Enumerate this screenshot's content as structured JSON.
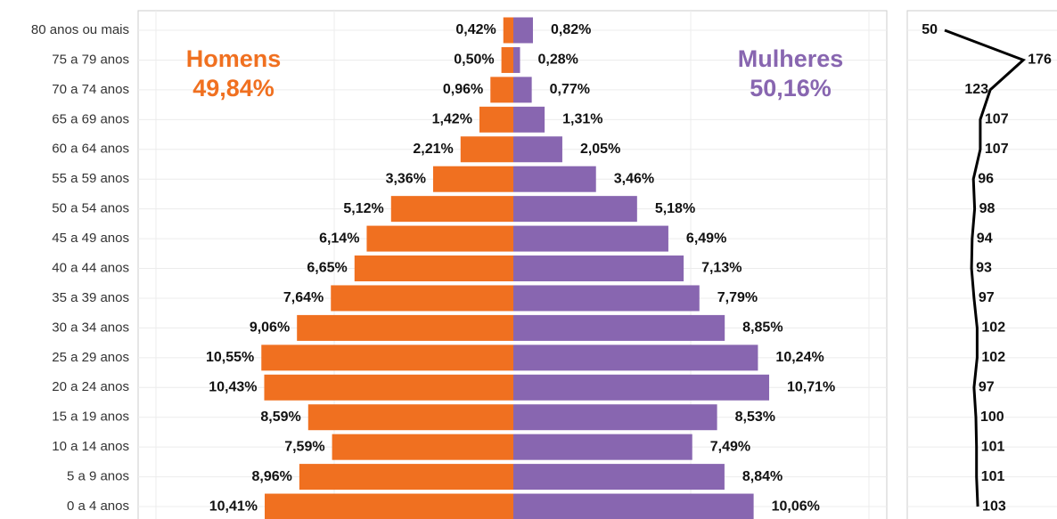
{
  "chart_data": [
    {
      "type": "pyramid",
      "categories": [
        "80 anos ou mais",
        "75 a 79 anos",
        "70 a 74 anos",
        "65 a 69 anos",
        "60 a 64 anos",
        "55 a 59 anos",
        "50 a 54 anos",
        "45 a 49 anos",
        "40 a 44 anos",
        "35 a 39 anos",
        "30 a 34 anos",
        "25 a 29 anos",
        "20 a 24 anos",
        "15 a 19 anos",
        "10 a 14 anos",
        "5 a 9 anos",
        "0 a 4 anos"
      ],
      "xlim": [
        0,
        15
      ],
      "series": [
        {
          "name": "Homens",
          "total": "49,84%",
          "color": "#f07020",
          "values": [
            0.42,
            0.5,
            0.96,
            1.42,
            2.21,
            3.36,
            5.12,
            6.14,
            6.65,
            7.64,
            9.06,
            10.55,
            10.43,
            8.59,
            7.59,
            8.96,
            10.41
          ],
          "value_labels": [
            "0,42%",
            "0,50%",
            "0,96%",
            "1,42%",
            "2,21%",
            "3,36%",
            "5,12%",
            "6,14%",
            "6,65%",
            "7,64%",
            "9,06%",
            "10,55%",
            "10,43%",
            "8,59%",
            "7,59%",
            "8,96%",
            "10,41%"
          ]
        },
        {
          "name": "Mulheres",
          "total": "50,16%",
          "color": "#8866b0",
          "values": [
            0.82,
            0.28,
            0.77,
            1.31,
            2.05,
            3.46,
            5.18,
            6.49,
            7.13,
            7.79,
            8.85,
            10.24,
            10.71,
            8.53,
            7.49,
            8.84,
            10.06
          ],
          "value_labels": [
            "0,82%",
            "0,28%",
            "0,77%",
            "1,31%",
            "2,05%",
            "3,46%",
            "5,18%",
            "6,49%",
            "7,13%",
            "7,79%",
            "8,85%",
            "10,24%",
            "10,71%",
            "8,53%",
            "7,49%",
            "8,84%",
            "10,06%"
          ]
        }
      ]
    },
    {
      "type": "line",
      "xlim": [
        0,
        250
      ],
      "color": "#000000",
      "values": [
        50,
        176,
        123,
        107,
        107,
        96,
        98,
        94,
        93,
        97,
        102,
        102,
        97,
        100,
        101,
        101,
        103
      ]
    }
  ]
}
